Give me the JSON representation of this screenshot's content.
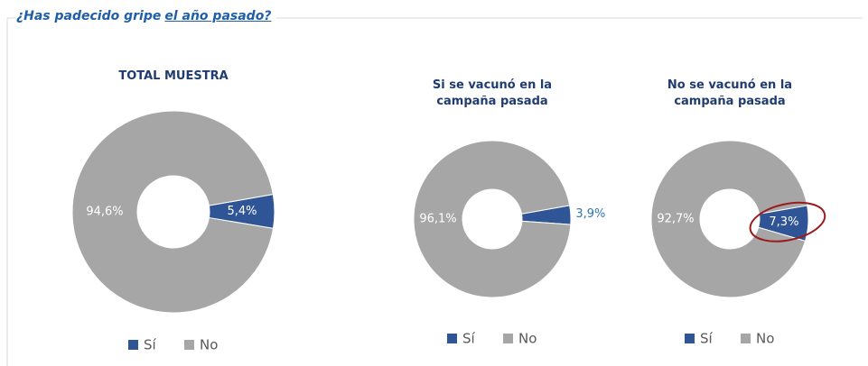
{
  "header": {
    "title": "¿Has padecido gripe",
    "title_underlined": "el año pasado?"
  },
  "chart_data": [
    {
      "type": "pie",
      "title": "TOTAL MUESTRA",
      "categories": [
        "Sí",
        "No"
      ],
      "values": [
        5.4,
        94.6
      ],
      "value_labels": [
        "5,4%",
        "94,6%"
      ],
      "colors": [
        "#2f5597",
        "#a6a6a6"
      ]
    },
    {
      "type": "pie",
      "title": "Si se vacunó en la campaña pasada",
      "categories": [
        "Sí",
        "No"
      ],
      "values": [
        3.9,
        96.1
      ],
      "value_labels": [
        "3,9%",
        "96,1%"
      ],
      "colors": [
        "#2f5597",
        "#a6a6a6"
      ]
    },
    {
      "type": "pie",
      "title": "No se vacunó en la campaña pasada",
      "categories": [
        "Sí",
        "No"
      ],
      "values": [
        7.3,
        92.7
      ],
      "value_labels": [
        "7,3%",
        "92,7%"
      ],
      "colors": [
        "#2f5597",
        "#a6a6a6"
      ]
    }
  ]
}
